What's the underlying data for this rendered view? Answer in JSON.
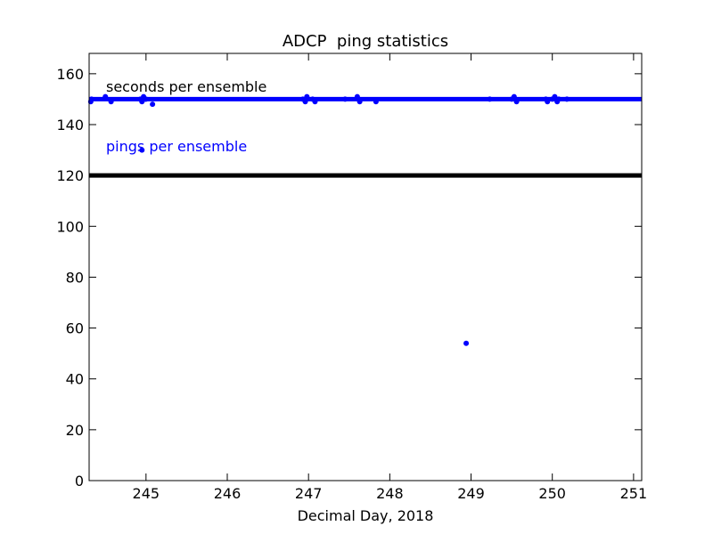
{
  "chart_data": {
    "type": "scatter",
    "title": "ADCP  ping statistics",
    "xlabel": "Decimal Day, 2018",
    "ylabel": "",
    "xlim": [
      244.3,
      251.1
    ],
    "ylim": [
      0,
      168
    ],
    "xticks": [
      245,
      246,
      247,
      248,
      249,
      250,
      251
    ],
    "yticks": [
      0,
      20,
      40,
      60,
      80,
      100,
      120,
      140,
      160
    ],
    "grid": false,
    "annotations": [
      {
        "text": "seconds per ensemble",
        "color": "#000000"
      },
      {
        "text": "pings per ensemble",
        "color": "#0000ff"
      }
    ],
    "series": [
      {
        "color": "#000000",
        "mode": "line",
        "x": [
          244.3,
          251.1
        ],
        "y": [
          120,
          120
        ]
      },
      {
        "color": "#0000ff",
        "mode": "line",
        "x": [
          244.3,
          251.1
        ],
        "y": [
          150,
          150
        ]
      },
      {
        "color": "#0000ff",
        "mode": "markers",
        "x": [
          244.32,
          244.33,
          244.5,
          244.57,
          244.93,
          244.95,
          244.97,
          244.99,
          245.0,
          244.95,
          245.08,
          246.93,
          246.96,
          246.98,
          247.05,
          247.08,
          247.45,
          247.6,
          247.63,
          247.83,
          249.23,
          249.5,
          249.53,
          249.56,
          249.92,
          249.94,
          250.0,
          250.03,
          250.06,
          250.08,
          250.18,
          248.94
        ],
        "y": [
          149,
          150,
          151,
          149,
          150,
          149,
          151,
          150,
          150,
          130,
          148,
          150,
          149,
          151,
          150,
          149,
          150,
          151,
          149,
          149,
          150,
          150,
          151,
          149,
          150,
          149,
          150,
          151,
          149,
          150,
          150,
          54
        ]
      }
    ]
  }
}
